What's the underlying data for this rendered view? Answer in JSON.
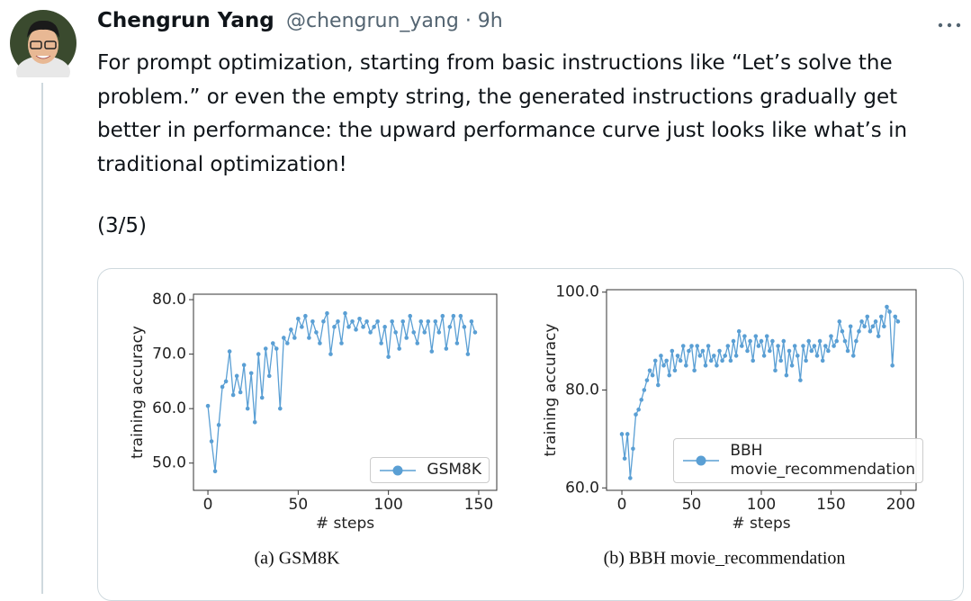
{
  "tweet": {
    "author": "Chengrun Yang",
    "meta": "@chengrun_yang · 9h",
    "text": "For prompt optimization, starting from basic instructions like “Let’s solve the problem.” or even the empty string, the generated instructions gradually get better in performance: the upward performance curve just looks like what’s in traditional optimization!",
    "thread_position": "(3/5)"
  },
  "chart_data": [
    {
      "type": "line",
      "caption": "(a) GSM8K",
      "xlabel": "# steps",
      "ylabel": "training accuracy",
      "xlim": [
        -8,
        160
      ],
      "ylim": [
        45,
        81
      ],
      "xticks": [
        0,
        50,
        100,
        150
      ],
      "yticks": [
        {
          "value": 50,
          "label": "50.0"
        },
        {
          "value": 60,
          "label": "60.0"
        },
        {
          "value": 70,
          "label": "70.0"
        },
        {
          "value": 80,
          "label": "80.0"
        }
      ],
      "legend": "lower right",
      "x": [
        0,
        2,
        4,
        6,
        8,
        10,
        12,
        14,
        16,
        18,
        20,
        22,
        24,
        26,
        28,
        30,
        32,
        34,
        36,
        38,
        40,
        42,
        44,
        46,
        48,
        50,
        52,
        54,
        56,
        58,
        60,
        62,
        64,
        66,
        68,
        70,
        72,
        74,
        76,
        78,
        80,
        82,
        84,
        86,
        88,
        90,
        92,
        94,
        96,
        98,
        100,
        102,
        104,
        106,
        108,
        110,
        112,
        114,
        116,
        118,
        120,
        122,
        124,
        126,
        128,
        130,
        132,
        134,
        136,
        138,
        140,
        142,
        144,
        146,
        148
      ],
      "series": [
        {
          "name": "GSM8K",
          "color": "#5a9fd4",
          "values": [
            60.5,
            54,
            48.5,
            57,
            64,
            65,
            70.5,
            62.5,
            66,
            63,
            68,
            60,
            66.5,
            57.5,
            70,
            62,
            71,
            66,
            72,
            71,
            60,
            73,
            72,
            74.5,
            73,
            76.5,
            75,
            77,
            73,
            76,
            74,
            72,
            76,
            77.5,
            70,
            75,
            76,
            72,
            77.5,
            75,
            76,
            74.5,
            76.5,
            75,
            76,
            74,
            75,
            76,
            72,
            75,
            69.5,
            76,
            74,
            71,
            76,
            73,
            77,
            74,
            72,
            76,
            74,
            76,
            70.5,
            76,
            74,
            77,
            71,
            75,
            77,
            72,
            77,
            75,
            70,
            76,
            74
          ]
        }
      ]
    },
    {
      "type": "line",
      "caption": "(b) BBH movie_recommendation",
      "xlabel": "# steps",
      "ylabel": "training accuracy",
      "xlim": [
        -11,
        211
      ],
      "ylim": [
        59.5,
        100.5
      ],
      "xticks": [
        0,
        50,
        100,
        150,
        200
      ],
      "yticks": [
        {
          "value": 60,
          "label": "60.0"
        },
        {
          "value": 80,
          "label": "80.0"
        },
        {
          "value": 100,
          "label": "100.0"
        }
      ],
      "legend": "lower right",
      "x": [
        0,
        2,
        4,
        6,
        8,
        10,
        12,
        14,
        16,
        18,
        20,
        22,
        24,
        26,
        28,
        30,
        32,
        34,
        36,
        38,
        40,
        42,
        44,
        46,
        48,
        50,
        52,
        54,
        56,
        58,
        60,
        62,
        64,
        66,
        68,
        70,
        72,
        74,
        76,
        78,
        80,
        82,
        84,
        86,
        88,
        90,
        92,
        94,
        96,
        98,
        100,
        102,
        104,
        106,
        108,
        110,
        112,
        114,
        116,
        118,
        120,
        122,
        124,
        126,
        128,
        130,
        132,
        134,
        136,
        138,
        140,
        142,
        144,
        146,
        148,
        150,
        152,
        154,
        156,
        158,
        160,
        162,
        164,
        166,
        168,
        170,
        172,
        174,
        176,
        178,
        180,
        182,
        184,
        186,
        188,
        190,
        192,
        194,
        196,
        198
      ],
      "series": [
        {
          "name": "BBH\nmovie_recommendation",
          "color": "#5a9fd4",
          "values": [
            71,
            66,
            71,
            62,
            68,
            75,
            76,
            78,
            80,
            82,
            84,
            83,
            86,
            81,
            87,
            85,
            86,
            83,
            88,
            84,
            87,
            86,
            89,
            85,
            88,
            89,
            84,
            89,
            87,
            88,
            85,
            89,
            86,
            87,
            85,
            88,
            86,
            87,
            89,
            86,
            90,
            87,
            92,
            89,
            91,
            88,
            90,
            86,
            91,
            89,
            90,
            87,
            91,
            88,
            90,
            84,
            89,
            86,
            90,
            83,
            88,
            85,
            89,
            87,
            82,
            89,
            86,
            90,
            88,
            89,
            87,
            90,
            86,
            89,
            88,
            91,
            89,
            90,
            94,
            92,
            90,
            88,
            93,
            87,
            90,
            92,
            94,
            93,
            95,
            92,
            93,
            94,
            91,
            95,
            93,
            97,
            96,
            85,
            95,
            94
          ]
        }
      ]
    }
  ]
}
